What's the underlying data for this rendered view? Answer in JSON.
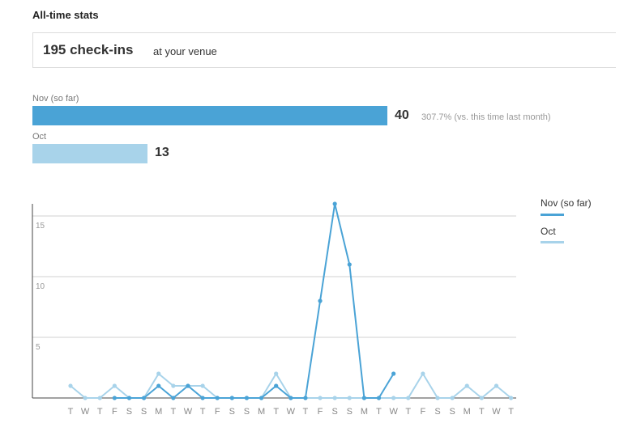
{
  "header": {
    "title": "All-time stats"
  },
  "summary": {
    "count": "195 check-ins",
    "suffix": "at your venue"
  },
  "month_bars": [
    {
      "label": "Nov (so far)",
      "value": 40,
      "change": "307.7% (vs. this time last month)",
      "color": "#4aa3d6"
    },
    {
      "label": "Oct",
      "value": 13,
      "change": "",
      "color": "#a8d3ea"
    }
  ],
  "chart_data": {
    "type": "line",
    "x": [
      "T",
      "W",
      "T",
      "F",
      "S",
      "S",
      "M",
      "T",
      "W",
      "T",
      "F",
      "S",
      "S",
      "M",
      "T",
      "W",
      "T",
      "F",
      "S",
      "S",
      "M",
      "T",
      "W",
      "T",
      "F",
      "S",
      "S",
      "M",
      "T",
      "W",
      "T"
    ],
    "yticks": [
      5,
      10,
      15
    ],
    "ylim": [
      0,
      16.5
    ],
    "series": [
      {
        "name": "Nov (so far)",
        "color": "#4aa3d6",
        "values": [
          null,
          null,
          null,
          0,
          0,
          0,
          1,
          0,
          1,
          0,
          0,
          0,
          0,
          0,
          1,
          0,
          0,
          8,
          16,
          11,
          0,
          0,
          2,
          null,
          null,
          null,
          null,
          null,
          null,
          null,
          null
        ]
      },
      {
        "name": "Oct",
        "color": "#a8d3ea",
        "values": [
          1,
          0,
          0,
          1,
          0,
          0,
          2,
          1,
          1,
          1,
          0,
          0,
          0,
          0,
          2,
          0,
          0,
          0,
          0,
          0,
          0,
          0,
          0,
          0,
          2,
          0,
          0,
          1,
          0,
          1,
          0
        ]
      }
    ],
    "legend_position": "right"
  }
}
